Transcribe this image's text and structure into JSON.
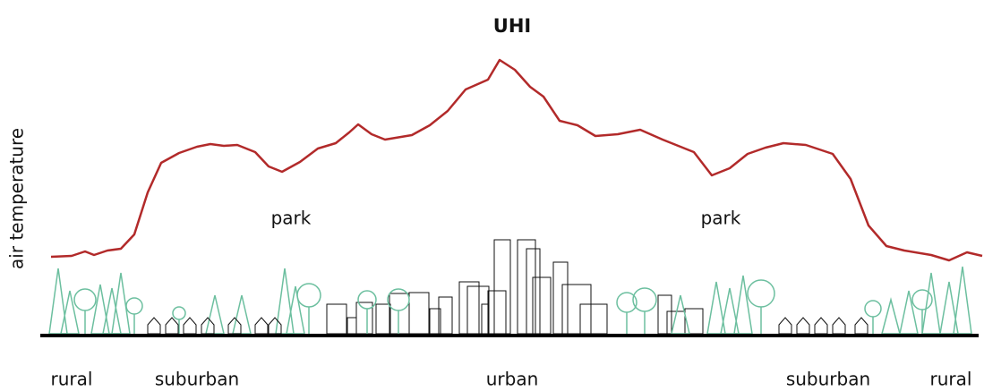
{
  "title": "UHI",
  "y_axis_label": "air temperature",
  "annotations": [
    "park",
    "park"
  ],
  "zones": [
    "rural",
    "suburban",
    "urban",
    "suburban",
    "rural"
  ]
}
